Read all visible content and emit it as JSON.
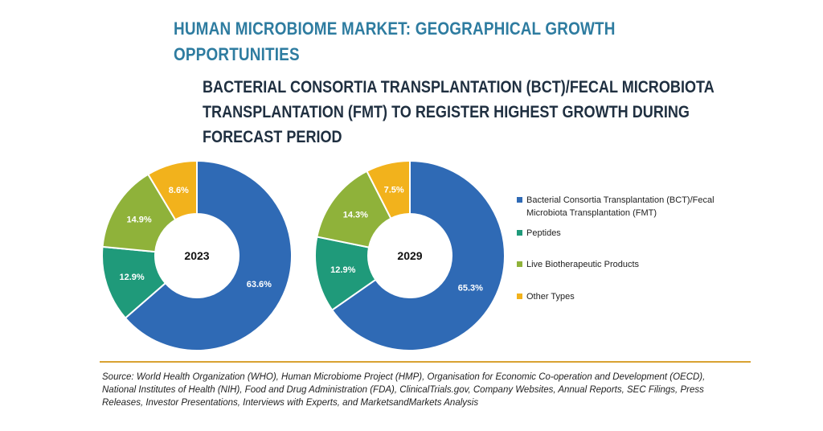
{
  "title": "HUMAN MICROBIOME MARKET: GEOGRAPHICAL GROWTH OPPORTUNITIES",
  "subtitle": "BACTERIAL CONSORTIA TRANSPLANTATION (BCT)/FECAL MICROBIOTA TRANSPLANTATION (FMT) TO REGISTER HIGHEST GROWTH DURING FORECAST PERIOD",
  "colors": {
    "bct": "#2f6ab5",
    "peptides": "#1f9a7a",
    "live": "#8fb23a",
    "other": "#f2b21c"
  },
  "chart_data": [
    {
      "type": "pie",
      "style": "donut",
      "center_label": "2023",
      "categories": [
        "Bacterial Consortia Transplantation (BCT)/Fecal Microbiota Transplantation (FMT)",
        "Peptides",
        "Live Biotherapeutic Products",
        "Other Types"
      ],
      "values": [
        63.6,
        12.9,
        14.9,
        8.6
      ],
      "value_labels": [
        "63.6%",
        "12.9%",
        "14.9%",
        "8.6%"
      ]
    },
    {
      "type": "pie",
      "style": "donut",
      "center_label": "2029",
      "categories": [
        "Bacterial Consortia Transplantation (BCT)/Fecal Microbiota Transplantation (FMT)",
        "Peptides",
        "Live Biotherapeutic Products",
        "Other Types"
      ],
      "values": [
        65.3,
        12.9,
        14.3,
        7.5
      ],
      "value_labels": [
        "65.3%",
        "12.9%",
        "14.3%",
        "7.5%"
      ]
    }
  ],
  "legend": [
    {
      "label": "Bacterial Consortia Transplantation (BCT)/Fecal Microbiota Transplantation (FMT)",
      "color_key": "bct"
    },
    {
      "label": "Peptides",
      "color_key": "peptides"
    },
    {
      "label": "Live Biotherapeutic Products",
      "color_key": "live"
    },
    {
      "label": "Other Types",
      "color_key": "other"
    }
  ],
  "source": "Source: World Health Organization (WHO), Human Microbiome Project (HMP), Organisation for Economic Co-operation and Development (OECD), National Institutes of Health (NIH), Food and Drug Administration (FDA), ClinicalTrials.gov, Company Websites, Annual Reports, SEC Filings, Press Releases, Investor Presentations, Interviews with Experts, and MarketsandMarkets Analysis"
}
